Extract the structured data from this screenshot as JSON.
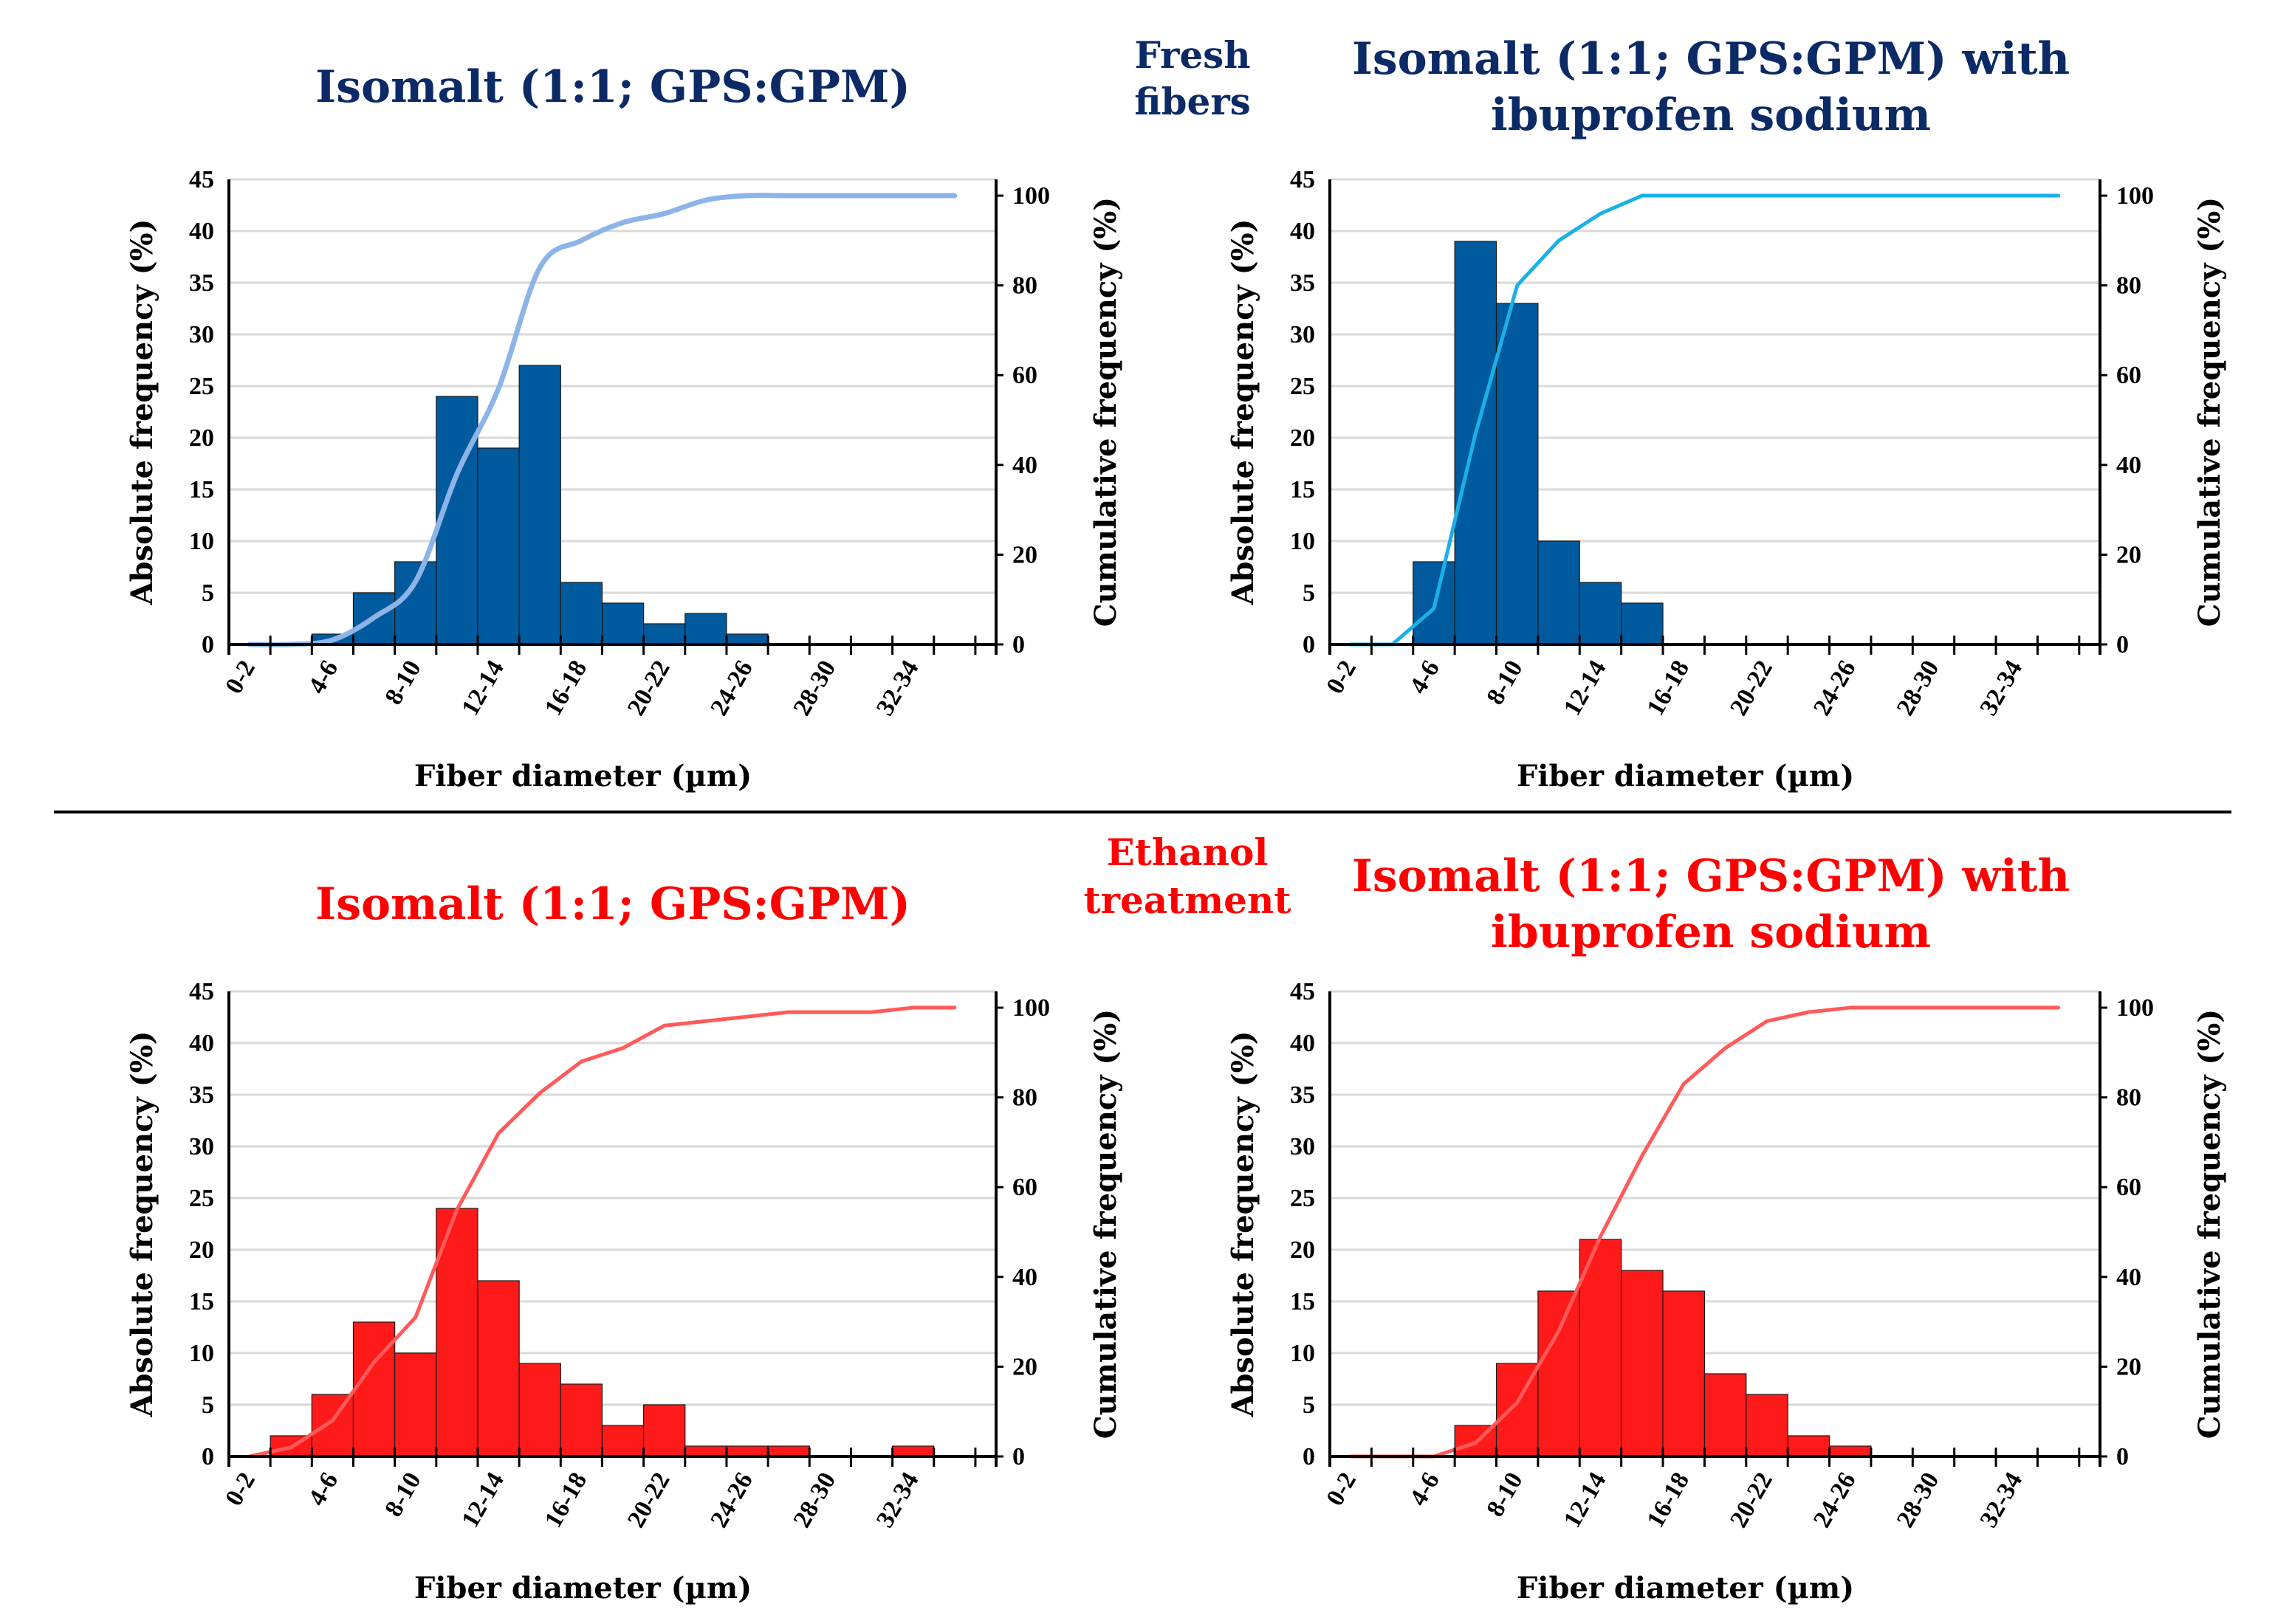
{
  "colors": {
    "navy_title": "#0b2a66",
    "red_title": "#ff0000",
    "navy_bar": "#005a9e",
    "red_bar": "#ff1a1a",
    "grid": "#d9d9d9"
  },
  "section_labels": {
    "fresh_line1": "Fresh",
    "fresh_line2": "fibers",
    "ethanol_line1": "Ethanol",
    "ethanol_line2": "treatment"
  },
  "chart_data": [
    {
      "type": "bar",
      "title_lines": [
        "Isomalt (1:1; GPS:GPM)"
      ],
      "xlabel": "Fiber diameter (µm)",
      "ylabel": "Absolute frequency (%)",
      "y2label": "Cumulative frequency (%)",
      "ylim": [
        0,
        45
      ],
      "yticks": [
        0,
        5,
        10,
        15,
        20,
        25,
        30,
        35,
        40,
        45
      ],
      "y2lim": [
        0,
        100
      ],
      "y2ticks": [
        0,
        20,
        40,
        60,
        80,
        100
      ],
      "grid": true,
      "categories": [
        "0-2",
        "2-4",
        "4-6",
        "6-8",
        "8-10",
        "10-12",
        "12-14",
        "14-16",
        "16-18",
        "18-20",
        "20-22",
        "22-24",
        "24-26",
        "26-28",
        "28-30",
        "30-32",
        "32-34",
        "34-36"
      ],
      "series": [
        {
          "name": "Absolute frequency",
          "type": "bar",
          "color": "#005a9e",
          "values": [
            0,
            0,
            1,
            5,
            8,
            24,
            19,
            27,
            6,
            4,
            2,
            3,
            1,
            0,
            0,
            0,
            0,
            0
          ]
        },
        {
          "name": "Cumulative frequency",
          "type": "line",
          "axis": "right",
          "color": "#8db4e8",
          "smooth": true,
          "values": [
            0,
            0,
            1,
            6,
            14,
            38,
            57,
            84,
            90,
            94,
            96,
            99,
            100,
            100,
            100,
            100,
            100,
            100
          ]
        }
      ],
      "theme": "navy"
    },
    {
      "type": "bar",
      "title_lines": [
        "Isomalt (1:1; GPS:GPM) with",
        "ibuprofen sodium"
      ],
      "xlabel": "Fiber diameter (µm)",
      "ylabel": "Absolute frequency (%)",
      "y2label": "Cumulative frequency (%)",
      "ylim": [
        0,
        45
      ],
      "yticks": [
        0,
        5,
        10,
        15,
        20,
        25,
        30,
        35,
        40,
        45
      ],
      "y2lim": [
        0,
        100
      ],
      "y2ticks": [
        0,
        20,
        40,
        60,
        80,
        100
      ],
      "grid": true,
      "categories": [
        "0-2",
        "2-4",
        "4-6",
        "6-8",
        "8-10",
        "10-12",
        "12-14",
        "14-16",
        "16-18",
        "18-20",
        "20-22",
        "22-24",
        "24-26",
        "26-28",
        "28-30",
        "30-32",
        "32-34",
        "34-36"
      ],
      "series": [
        {
          "name": "Absolute frequency",
          "type": "bar",
          "color": "#005a9e",
          "values": [
            0,
            0,
            8,
            39,
            33,
            10,
            6,
            4,
            0,
            0,
            0,
            0,
            0,
            0,
            0,
            0,
            0,
            0
          ]
        },
        {
          "name": "Cumulative frequency",
          "type": "line",
          "axis": "right",
          "color": "#1ab0e8",
          "smooth": false,
          "values": [
            0,
            0,
            8,
            47,
            80,
            90,
            96,
            100,
            100,
            100,
            100,
            100,
            100,
            100,
            100,
            100,
            100,
            100
          ]
        }
      ],
      "theme": "navy"
    },
    {
      "type": "bar",
      "title_lines": [
        "Isomalt (1:1; GPS:GPM)"
      ],
      "xlabel": "Fiber diameter (µm)",
      "ylabel": "Absolute frequency (%)",
      "y2label": "Cumulative frequency (%)",
      "ylim": [
        0,
        45
      ],
      "yticks": [
        0,
        5,
        10,
        15,
        20,
        25,
        30,
        35,
        40,
        45
      ],
      "y2lim": [
        0,
        100
      ],
      "y2ticks": [
        0,
        20,
        40,
        60,
        80,
        100
      ],
      "grid": true,
      "categories": [
        "0-2",
        "2-4",
        "4-6",
        "6-8",
        "8-10",
        "10-12",
        "12-14",
        "14-16",
        "16-18",
        "18-20",
        "20-22",
        "22-24",
        "24-26",
        "26-28",
        "28-30",
        "30-32",
        "32-34",
        "34-36"
      ],
      "series": [
        {
          "name": "Absolute frequency",
          "type": "bar",
          "color": "#ff1a1a",
          "values": [
            0,
            2,
            6,
            13,
            10,
            24,
            17,
            9,
            7,
            3,
            5,
            1,
            1,
            1,
            0,
            0,
            1,
            0
          ]
        },
        {
          "name": "Cumulative frequency",
          "type": "line",
          "axis": "right",
          "color": "#ff5a5a",
          "smooth": false,
          "values": [
            0,
            2,
            8,
            21,
            31,
            55,
            72,
            81,
            88,
            91,
            96,
            97,
            98,
            99,
            99,
            99,
            100,
            100
          ]
        }
      ],
      "theme": "red"
    },
    {
      "type": "bar",
      "title_lines": [
        "Isomalt (1:1; GPS:GPM) with",
        "ibuprofen sodium"
      ],
      "xlabel": "Fiber diameter (µm)",
      "ylabel": "Absolute frequency (%)",
      "y2label": "Cumulative frequency (%)",
      "ylim": [
        0,
        45
      ],
      "yticks": [
        0,
        5,
        10,
        15,
        20,
        25,
        30,
        35,
        40,
        45
      ],
      "y2lim": [
        0,
        100
      ],
      "y2ticks": [
        0,
        20,
        40,
        60,
        80,
        100
      ],
      "grid": true,
      "categories": [
        "0-2",
        "2-4",
        "4-6",
        "6-8",
        "8-10",
        "10-12",
        "12-14",
        "14-16",
        "16-18",
        "18-20",
        "20-22",
        "22-24",
        "24-26",
        "26-28",
        "28-30",
        "30-32",
        "32-34",
        "34-36"
      ],
      "series": [
        {
          "name": "Absolute frequency",
          "type": "bar",
          "color": "#ff1a1a",
          "values": [
            0,
            0,
            0,
            3,
            9,
            16,
            21,
            18,
            16,
            8,
            6,
            2,
            1,
            0,
            0,
            0,
            0,
            0
          ]
        },
        {
          "name": "Cumulative frequency",
          "type": "line",
          "axis": "right",
          "color": "#ff5a5a",
          "smooth": false,
          "values": [
            0,
            0,
            0,
            3,
            12,
            28,
            49,
            67,
            83,
            91,
            97,
            99,
            100,
            100,
            100,
            100,
            100,
            100
          ]
        }
      ],
      "theme": "red"
    }
  ]
}
